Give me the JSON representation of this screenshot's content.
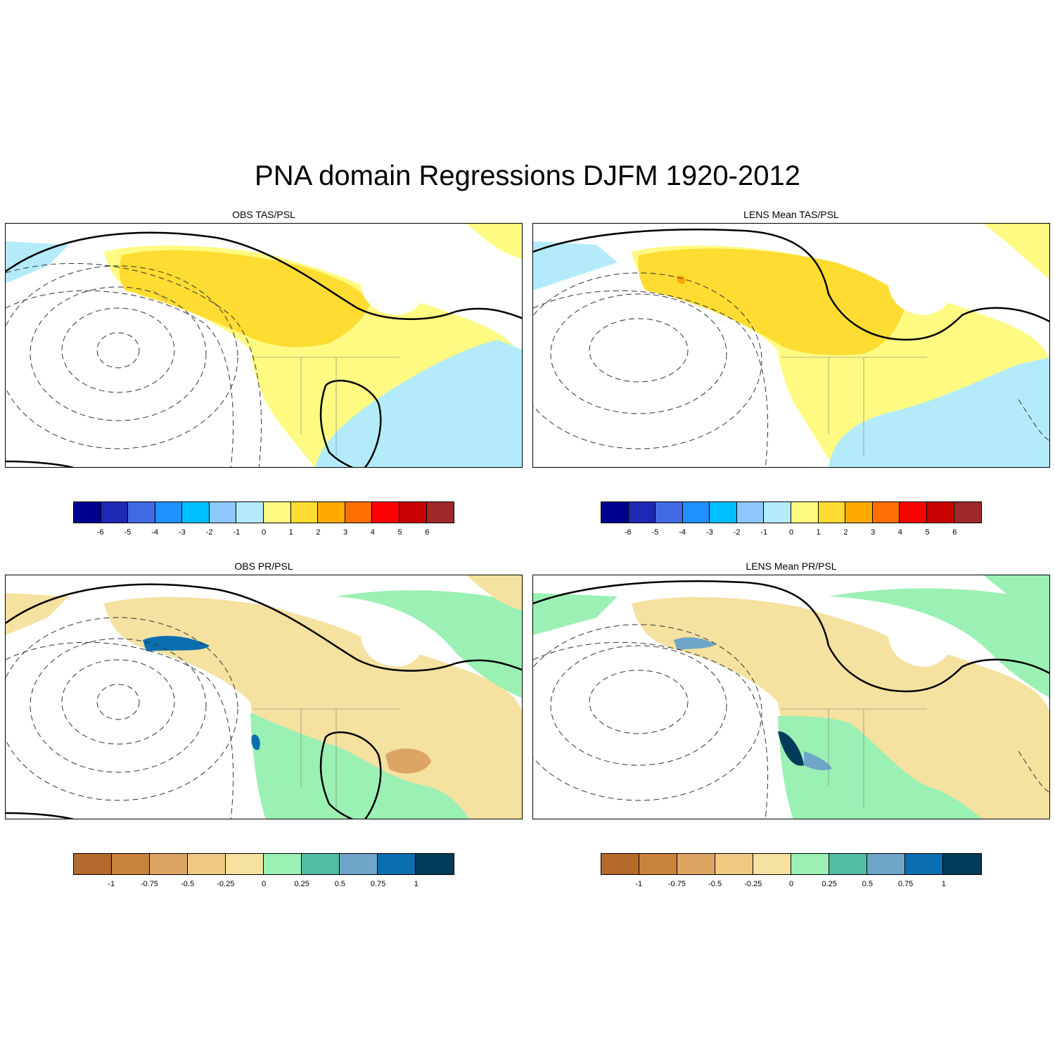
{
  "title": "PNA domain Regressions DJFM 1920-2012",
  "panels": [
    {
      "id": "obs-tas",
      "title": "OBS TAS/PSL"
    },
    {
      "id": "lens-tas",
      "title": "LENS Mean TAS/PSL"
    },
    {
      "id": "obs-pr",
      "title": "OBS PR/PSL"
    },
    {
      "id": "lens-pr",
      "title": "LENS Mean PR/PSL"
    }
  ],
  "colorbars": {
    "tas": {
      "labels": [
        "-6",
        "-5",
        "-4",
        "-3",
        "-2",
        "-1",
        "0",
        "1",
        "2",
        "3",
        "4",
        "5",
        "6"
      ],
      "colors": [
        "#00008f",
        "#1e28b4",
        "#4169e1",
        "#1e90ff",
        "#00bfff",
        "#8cc8ff",
        "#b4ebfa",
        "#fffa82",
        "#ffdc32",
        "#ffaa00",
        "#ff6e00",
        "#ff0000",
        "#c80000",
        "#a02828"
      ]
    },
    "pr": {
      "labels": [
        "-1",
        "-0.75",
        "-0.5",
        "-0.25",
        "0",
        "0.25",
        "0.5",
        "0.75",
        "1"
      ],
      "colors": [
        "#b4692d",
        "#c8823c",
        "#dca564",
        "#f0c882",
        "#f5e1a0",
        "#9bf0b4",
        "#50beA0",
        "#6ea5c8",
        "#0a6eaf",
        "#003c5a"
      ]
    }
  }
}
